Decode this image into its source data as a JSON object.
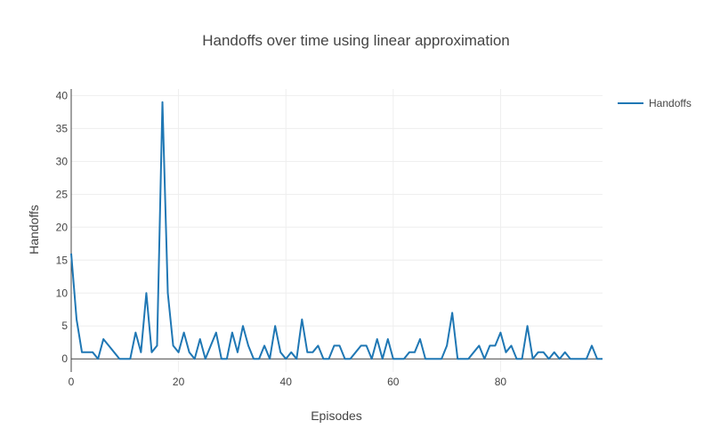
{
  "chart_data": {
    "type": "line",
    "title": "Handoffs over time using linear approximation",
    "xlabel": "Episodes",
    "ylabel": "Handoffs",
    "xlim": [
      0,
      99
    ],
    "ylim": [
      -2,
      41
    ],
    "xticks": [
      0,
      20,
      40,
      60,
      80
    ],
    "yticks": [
      0,
      5,
      10,
      15,
      20,
      25,
      30,
      35,
      40
    ],
    "grid": true,
    "legend_position": "top-right",
    "series": [
      {
        "name": "Handoffs",
        "color": "#1f77b4",
        "x": [
          0,
          1,
          2,
          3,
          4,
          5,
          6,
          7,
          8,
          9,
          10,
          11,
          12,
          13,
          14,
          15,
          16,
          17,
          18,
          19,
          20,
          21,
          22,
          23,
          24,
          25,
          26,
          27,
          28,
          29,
          30,
          31,
          32,
          33,
          34,
          35,
          36,
          37,
          38,
          39,
          40,
          41,
          42,
          43,
          44,
          45,
          46,
          47,
          48,
          49,
          50,
          51,
          52,
          53,
          54,
          55,
          56,
          57,
          58,
          59,
          60,
          61,
          62,
          63,
          64,
          65,
          66,
          67,
          68,
          69,
          70,
          71,
          72,
          73,
          74,
          75,
          76,
          77,
          78,
          79,
          80,
          81,
          82,
          83,
          84,
          85,
          86,
          87,
          88,
          89,
          90,
          91,
          92,
          93,
          94,
          95,
          96,
          97,
          98,
          99
        ],
        "values": [
          16,
          6,
          1,
          1,
          1,
          0,
          3,
          2,
          1,
          0,
          0,
          0,
          4,
          1,
          10,
          1,
          2,
          39,
          10,
          2,
          1,
          4,
          1,
          0,
          3,
          0,
          2,
          4,
          0,
          0,
          4,
          1,
          5,
          2,
          0,
          0,
          2,
          0,
          5,
          1,
          0,
          1,
          0,
          6,
          1,
          1,
          2,
          0,
          0,
          2,
          2,
          0,
          0,
          1,
          2,
          2,
          0,
          3,
          0,
          3,
          0,
          0,
          0,
          1,
          1,
          3,
          0,
          0,
          0,
          0,
          2,
          7,
          0,
          0,
          0,
          1,
          2,
          0,
          2,
          2,
          4,
          1,
          2,
          0,
          0,
          5,
          0,
          1,
          1,
          0,
          1,
          0,
          1,
          0,
          0,
          0,
          0,
          2,
          0,
          0
        ]
      }
    ]
  }
}
